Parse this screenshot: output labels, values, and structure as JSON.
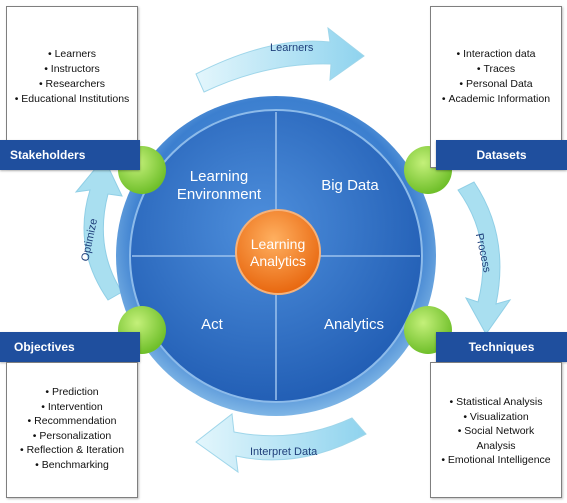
{
  "center": {
    "line1": "Learning",
    "line2": "Analytics"
  },
  "quadrants": {
    "top_left": {
      "line1": "Learning",
      "line2": "Environment"
    },
    "top_right": "Big Data",
    "bottom_left": "Act",
    "bottom_right": "Analytics"
  },
  "arrows": {
    "top": "Learners",
    "right": "Process",
    "bottom": "Interpret Data",
    "left": "Optimize"
  },
  "stakeholders": {
    "title": "Stakeholders",
    "items": [
      "Learners",
      "Instructors",
      "Researchers",
      "Educational Institutions"
    ]
  },
  "datasets": {
    "title": "Datasets",
    "items": [
      "Interaction data",
      "Traces",
      "Personal Data",
      "Academic Information"
    ]
  },
  "objectives": {
    "title": "Objectives",
    "items": [
      "Prediction",
      "Intervention",
      "Recommendation",
      "Personalization",
      "Reflection & Iteration",
      "Benchmarking"
    ]
  },
  "techniques": {
    "title": "Techniques",
    "items": [
      "Statistical Analysis",
      "Visualization",
      "Social Network",
      "Analysis",
      "Emotional Intelligence"
    ]
  },
  "colors": {
    "navy": "#1f4f9e",
    "circle_blue": "#2f6fc4",
    "orange": "#ef7b1f",
    "green": "#8ccf3a",
    "arrow": "#a9dff0"
  }
}
